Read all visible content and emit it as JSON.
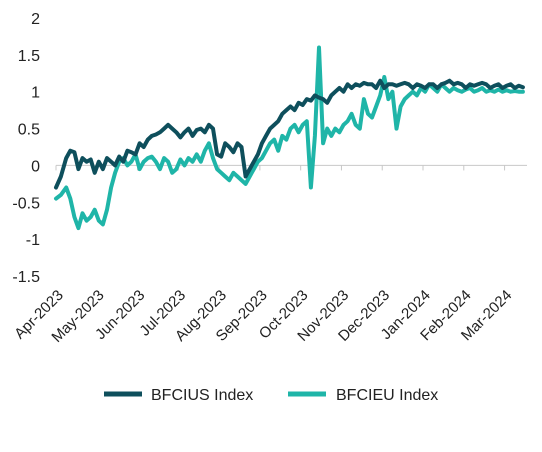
{
  "chart_data": {
    "type": "line",
    "title": "",
    "xlabel": "",
    "ylabel": "",
    "ylim": [
      -1.5,
      2
    ],
    "yticks": [
      "2",
      "1.5",
      "1",
      "0.5",
      "0",
      "-0.5",
      "-1",
      "-1.5"
    ],
    "xticks": [
      "Apr-2023",
      "May-2023",
      "Jun-2023",
      "Jul-2023",
      "Aug-2023",
      "Sep-2023",
      "Oct-2023",
      "Nov-2023",
      "Dec-2023",
      "Jan-2024",
      "Feb-2024",
      "Mar-2024"
    ],
    "grid": false,
    "legend_position": "bottom",
    "series": [
      {
        "name": "BFCIUS Index",
        "color": "#0e4f5c",
        "x": [
          0,
          0.12,
          0.25,
          0.35,
          0.45,
          0.55,
          0.65,
          0.75,
          0.85,
          0.95,
          1.05,
          1.15,
          1.25,
          1.35,
          1.45,
          1.55,
          1.65,
          1.75,
          1.85,
          1.95,
          2.05,
          2.15,
          2.25,
          2.35,
          2.45,
          2.55,
          2.65,
          2.75,
          2.85,
          2.95,
          3.05,
          3.15,
          3.25,
          3.35,
          3.45,
          3.55,
          3.65,
          3.75,
          3.85,
          3.95,
          4.05,
          4.15,
          4.25,
          4.35,
          4.45,
          4.55,
          4.65,
          4.75,
          4.85,
          4.95,
          5.05,
          5.15,
          5.25,
          5.35,
          5.45,
          5.55,
          5.65,
          5.75,
          5.85,
          5.95,
          6.05,
          6.15,
          6.25,
          6.35,
          6.45,
          6.55,
          6.65,
          6.75,
          6.85,
          6.95,
          7.05,
          7.15,
          7.25,
          7.35,
          7.45,
          7.55,
          7.65,
          7.75,
          7.85,
          7.95,
          8.05,
          8.15,
          8.25,
          8.35,
          8.45,
          8.55,
          8.65,
          8.75,
          8.85,
          8.95,
          9.05,
          9.15,
          9.25,
          9.35,
          9.45,
          9.55,
          9.65,
          9.75,
          9.85,
          9.95,
          10.05,
          10.15,
          10.25,
          10.35,
          10.45,
          10.55,
          10.65,
          10.75,
          10.85,
          10.95,
          11.05,
          11.15,
          11.25,
          11.35,
          11.45
        ],
        "y": [
          -0.3,
          -0.15,
          0.1,
          0.2,
          0.18,
          -0.05,
          0.1,
          0.05,
          0.08,
          -0.1,
          0.05,
          -0.05,
          0.1,
          0.05,
          0.0,
          0.12,
          0.05,
          0.2,
          0.18,
          0.15,
          0.3,
          0.25,
          0.35,
          0.4,
          0.42,
          0.45,
          0.5,
          0.55,
          0.5,
          0.45,
          0.38,
          0.45,
          0.5,
          0.4,
          0.48,
          0.5,
          0.45,
          0.55,
          0.5,
          0.15,
          0.12,
          0.3,
          0.25,
          0.18,
          0.3,
          0.25,
          -0.15,
          -0.05,
          0.05,
          0.15,
          0.3,
          0.4,
          0.5,
          0.55,
          0.6,
          0.7,
          0.75,
          0.8,
          0.75,
          0.85,
          0.82,
          0.9,
          0.88,
          0.95,
          0.92,
          0.9,
          0.85,
          0.95,
          1.0,
          1.05,
          1.0,
          1.1,
          1.05,
          1.1,
          1.08,
          1.12,
          1.1,
          1.1,
          1.05,
          1.15,
          1.05,
          1.1,
          1.1,
          1.08,
          1.1,
          1.12,
          1.1,
          1.05,
          1.1,
          1.08,
          1.05,
          1.1,
          1.1,
          1.05,
          1.1,
          1.12,
          1.15,
          1.1,
          1.12,
          1.1,
          1.05,
          1.1,
          1.08,
          1.1,
          1.12,
          1.1,
          1.05,
          1.08,
          1.1,
          1.05,
          1.08,
          1.1,
          1.05,
          1.08,
          1.06
        ]
      },
      {
        "name": "BFCIEU Index",
        "color": "#1fb5a8",
        "x": [
          0,
          0.12,
          0.25,
          0.35,
          0.45,
          0.55,
          0.65,
          0.75,
          0.85,
          0.95,
          1.05,
          1.15,
          1.25,
          1.35,
          1.45,
          1.55,
          1.65,
          1.75,
          1.85,
          1.95,
          2.05,
          2.15,
          2.25,
          2.35,
          2.45,
          2.55,
          2.65,
          2.75,
          2.85,
          2.95,
          3.05,
          3.15,
          3.25,
          3.35,
          3.45,
          3.55,
          3.65,
          3.75,
          3.85,
          3.95,
          4.05,
          4.15,
          4.25,
          4.35,
          4.45,
          4.55,
          4.65,
          4.75,
          4.85,
          4.95,
          5.05,
          5.15,
          5.25,
          5.35,
          5.45,
          5.55,
          5.65,
          5.75,
          5.85,
          5.95,
          6.05,
          6.15,
          6.25,
          6.35,
          6.45,
          6.55,
          6.65,
          6.75,
          6.85,
          6.95,
          7.05,
          7.15,
          7.25,
          7.35,
          7.45,
          7.55,
          7.65,
          7.75,
          7.85,
          7.95,
          8.05,
          8.15,
          8.25,
          8.35,
          8.45,
          8.55,
          8.65,
          8.75,
          8.85,
          8.95,
          9.05,
          9.15,
          9.25,
          9.35,
          9.45,
          9.55,
          9.65,
          9.75,
          9.85,
          9.95,
          10.05,
          10.15,
          10.25,
          10.35,
          10.45,
          10.55,
          10.65,
          10.75,
          10.85,
          10.95,
          11.05,
          11.15,
          11.25,
          11.35,
          11.45
        ],
        "y": [
          -0.45,
          -0.4,
          -0.3,
          -0.45,
          -0.7,
          -0.85,
          -0.65,
          -0.75,
          -0.7,
          -0.6,
          -0.75,
          -0.8,
          -0.6,
          -0.3,
          -0.1,
          0.05,
          0.1,
          0.0,
          0.05,
          0.15,
          -0.05,
          0.05,
          0.1,
          0.12,
          0.05,
          -0.05,
          0.1,
          0.05,
          -0.1,
          -0.05,
          0.08,
          0.0,
          0.1,
          0.05,
          0.15,
          0.05,
          0.2,
          0.3,
          0.1,
          -0.05,
          -0.1,
          -0.15,
          -0.2,
          -0.1,
          -0.15,
          -0.2,
          -0.25,
          -0.15,
          -0.05,
          0.05,
          0.1,
          0.2,
          0.3,
          0.35,
          0.2,
          0.4,
          0.35,
          0.5,
          0.55,
          0.45,
          0.55,
          0.6,
          -0.3,
          0.4,
          1.6,
          0.3,
          0.5,
          0.4,
          0.5,
          0.45,
          0.55,
          0.6,
          0.7,
          0.55,
          0.5,
          0.9,
          0.7,
          0.65,
          0.8,
          0.95,
          1.2,
          0.9,
          1.0,
          0.5,
          0.8,
          0.9,
          0.95,
          1.0,
          0.95,
          1.05,
          1.0,
          1.1,
          1.05,
          1.0,
          1.1,
          1.05,
          1.0,
          1.05,
          1.02,
          1.0,
          1.03,
          1.05,
          1.0,
          1.02,
          1.05,
          1.0,
          1.02,
          1.0,
          1.03,
          1.0,
          1.02,
          1.0,
          1.01,
          1.0,
          1.0
        ]
      }
    ]
  }
}
